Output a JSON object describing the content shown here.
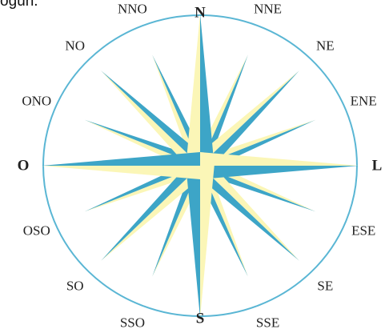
{
  "page": {
    "top_text": "ogún."
  },
  "compass": {
    "colors": {
      "blue": "#3da5c7",
      "cream": "#fbf6b7",
      "outline": "#5ab6d4",
      "label": "#222222"
    },
    "points": [
      {
        "label": "N",
        "bearing": 0,
        "cardinal": true
      },
      {
        "label": "NNE",
        "bearing": 22.5,
        "cardinal": false
      },
      {
        "label": "NE",
        "bearing": 45,
        "cardinal": false
      },
      {
        "label": "ENE",
        "bearing": 67.5,
        "cardinal": false
      },
      {
        "label": "L",
        "bearing": 90,
        "cardinal": true
      },
      {
        "label": "ESE",
        "bearing": 112.5,
        "cardinal": false
      },
      {
        "label": "SE",
        "bearing": 135,
        "cardinal": false
      },
      {
        "label": "SSE",
        "bearing": 157.5,
        "cardinal": false
      },
      {
        "label": "S",
        "bearing": 180,
        "cardinal": true
      },
      {
        "label": "SSO",
        "bearing": 202.5,
        "cardinal": false
      },
      {
        "label": "SO",
        "bearing": 225,
        "cardinal": false
      },
      {
        "label": "OSO",
        "bearing": 247.5,
        "cardinal": false
      },
      {
        "label": "O",
        "bearing": 270,
        "cardinal": true
      },
      {
        "label": "ONO",
        "bearing": 292.5,
        "cardinal": false
      },
      {
        "label": "NO",
        "bearing": 315,
        "cardinal": false
      },
      {
        "label": "NNO",
        "bearing": 337.5,
        "cardinal": false
      }
    ]
  }
}
